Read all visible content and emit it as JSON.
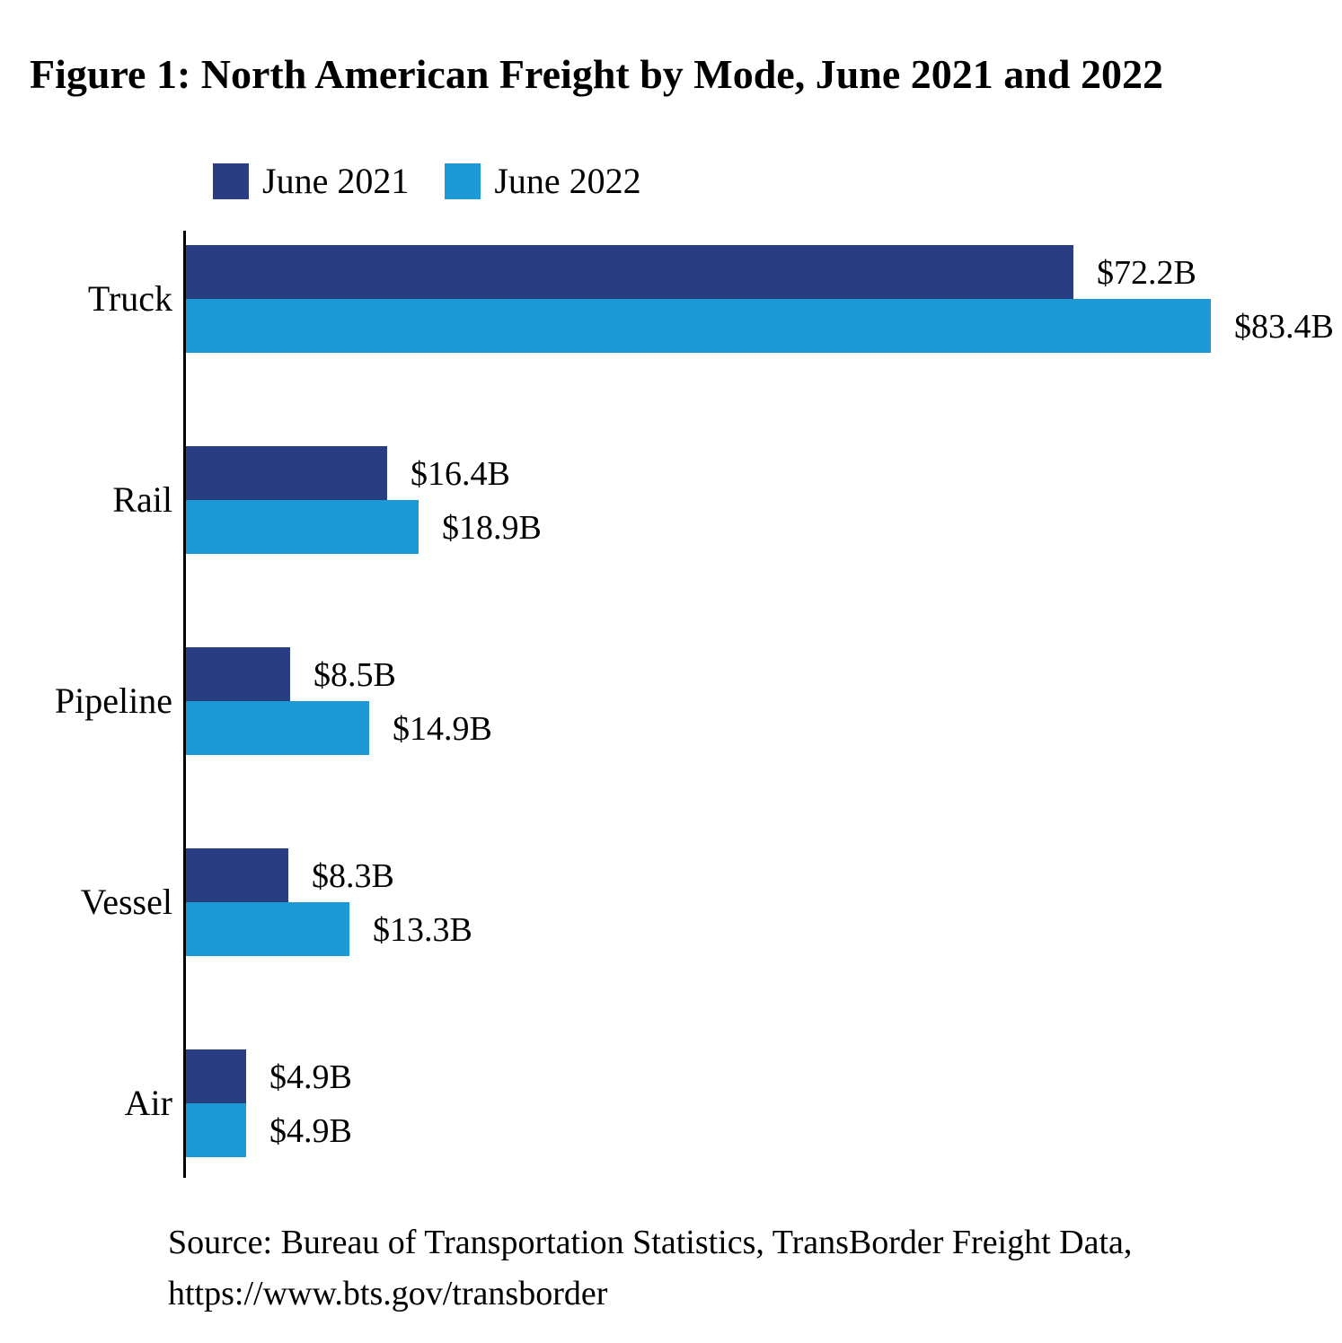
{
  "title": "Figure 1: North American Freight by Mode, June 2021 and 2022",
  "source": {
    "line1": "Source: Bureau of Transportation Statistics, TransBorder Freight Data,",
    "line2": "https://www.bts.gov/transborder"
  },
  "chart_data": {
    "type": "bar",
    "orientation": "horizontal",
    "title": "Figure 1: North American Freight by Mode, June 2021 and 2022",
    "categories": [
      "Truck",
      "Rail",
      "Pipeline",
      "Vessel",
      "Air"
    ],
    "series": [
      {
        "name": "June 2021",
        "color": "#283d82",
        "values": [
          72.2,
          16.4,
          8.5,
          8.3,
          4.9
        ],
        "labels": [
          "$72.2B",
          "$16.4B",
          "$8.5B",
          "$8.3B",
          "$4.9B"
        ]
      },
      {
        "name": "June 2022",
        "color": "#1d9ad6",
        "values": [
          83.4,
          18.9,
          14.9,
          13.3,
          4.9
        ],
        "labels": [
          "$83.4B",
          "$18.9B",
          "$14.9B",
          "$13.3B",
          "$4.9B"
        ]
      }
    ],
    "unit": "billions of US dollars",
    "xlim": [
      0,
      91
    ],
    "grid": false,
    "value_labels": true,
    "legend_position": "top-left"
  }
}
